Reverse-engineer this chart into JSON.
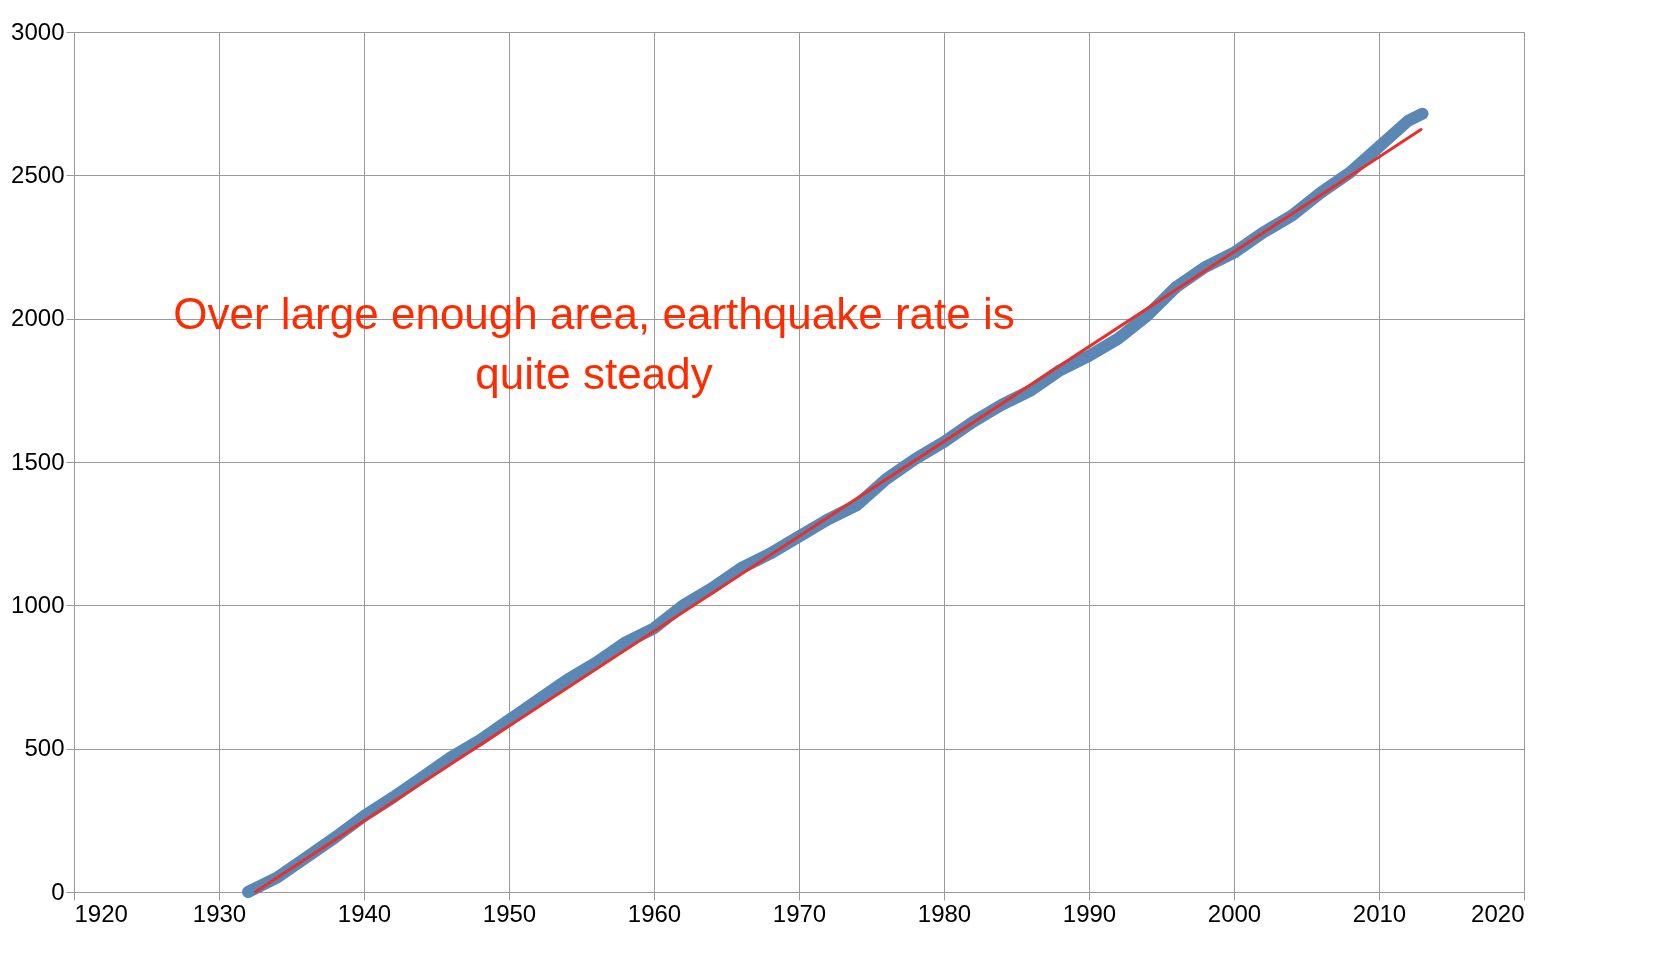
{
  "chart_data": {
    "type": "line",
    "xlim": [
      1920,
      2020
    ],
    "xticks": [
      1920,
      1930,
      1940,
      1950,
      1960,
      1970,
      1980,
      1990,
      2000,
      2010,
      2020
    ],
    "ylim": [
      0,
      3000
    ],
    "yticks": [
      0,
      500,
      1000,
      1500,
      2000,
      2500,
      3000
    ],
    "grid": true,
    "marker": "none",
    "line_style": "solid",
    "annotations": [
      "Over large enough area, earthquake rate is\nquite steady"
    ],
    "series": [
      {
        "color": "#5b87b5",
        "x": [
          1932,
          1934,
          1936,
          1938,
          1940,
          1942,
          1944,
          1946,
          1948,
          1950,
          1952,
          1954,
          1956,
          1958,
          1960,
          1962,
          1964,
          1966,
          1968,
          1970,
          1972,
          1974,
          1976,
          1978,
          1980,
          1982,
          1984,
          1986,
          1988,
          1990,
          1992,
          1994,
          1996,
          1998,
          2000,
          2002,
          2004,
          2006,
          2008,
          2010,
          2012,
          2013
        ],
        "values": [
          0,
          50,
          120,
          190,
          265,
          330,
          400,
          470,
          530,
          600,
          670,
          740,
          800,
          870,
          920,
          1000,
          1060,
          1130,
          1180,
          1240,
          1300,
          1350,
          1440,
          1510,
          1570,
          1640,
          1700,
          1750,
          1820,
          1870,
          1930,
          2010,
          2110,
          2180,
          2230,
          2300,
          2360,
          2440,
          2510,
          2600,
          2690,
          2715
        ]
      },
      {
        "color": "#e8302a",
        "x": [
          1932.5,
          2012.9
        ],
        "values": [
          0,
          2660
        ]
      }
    ]
  }
}
